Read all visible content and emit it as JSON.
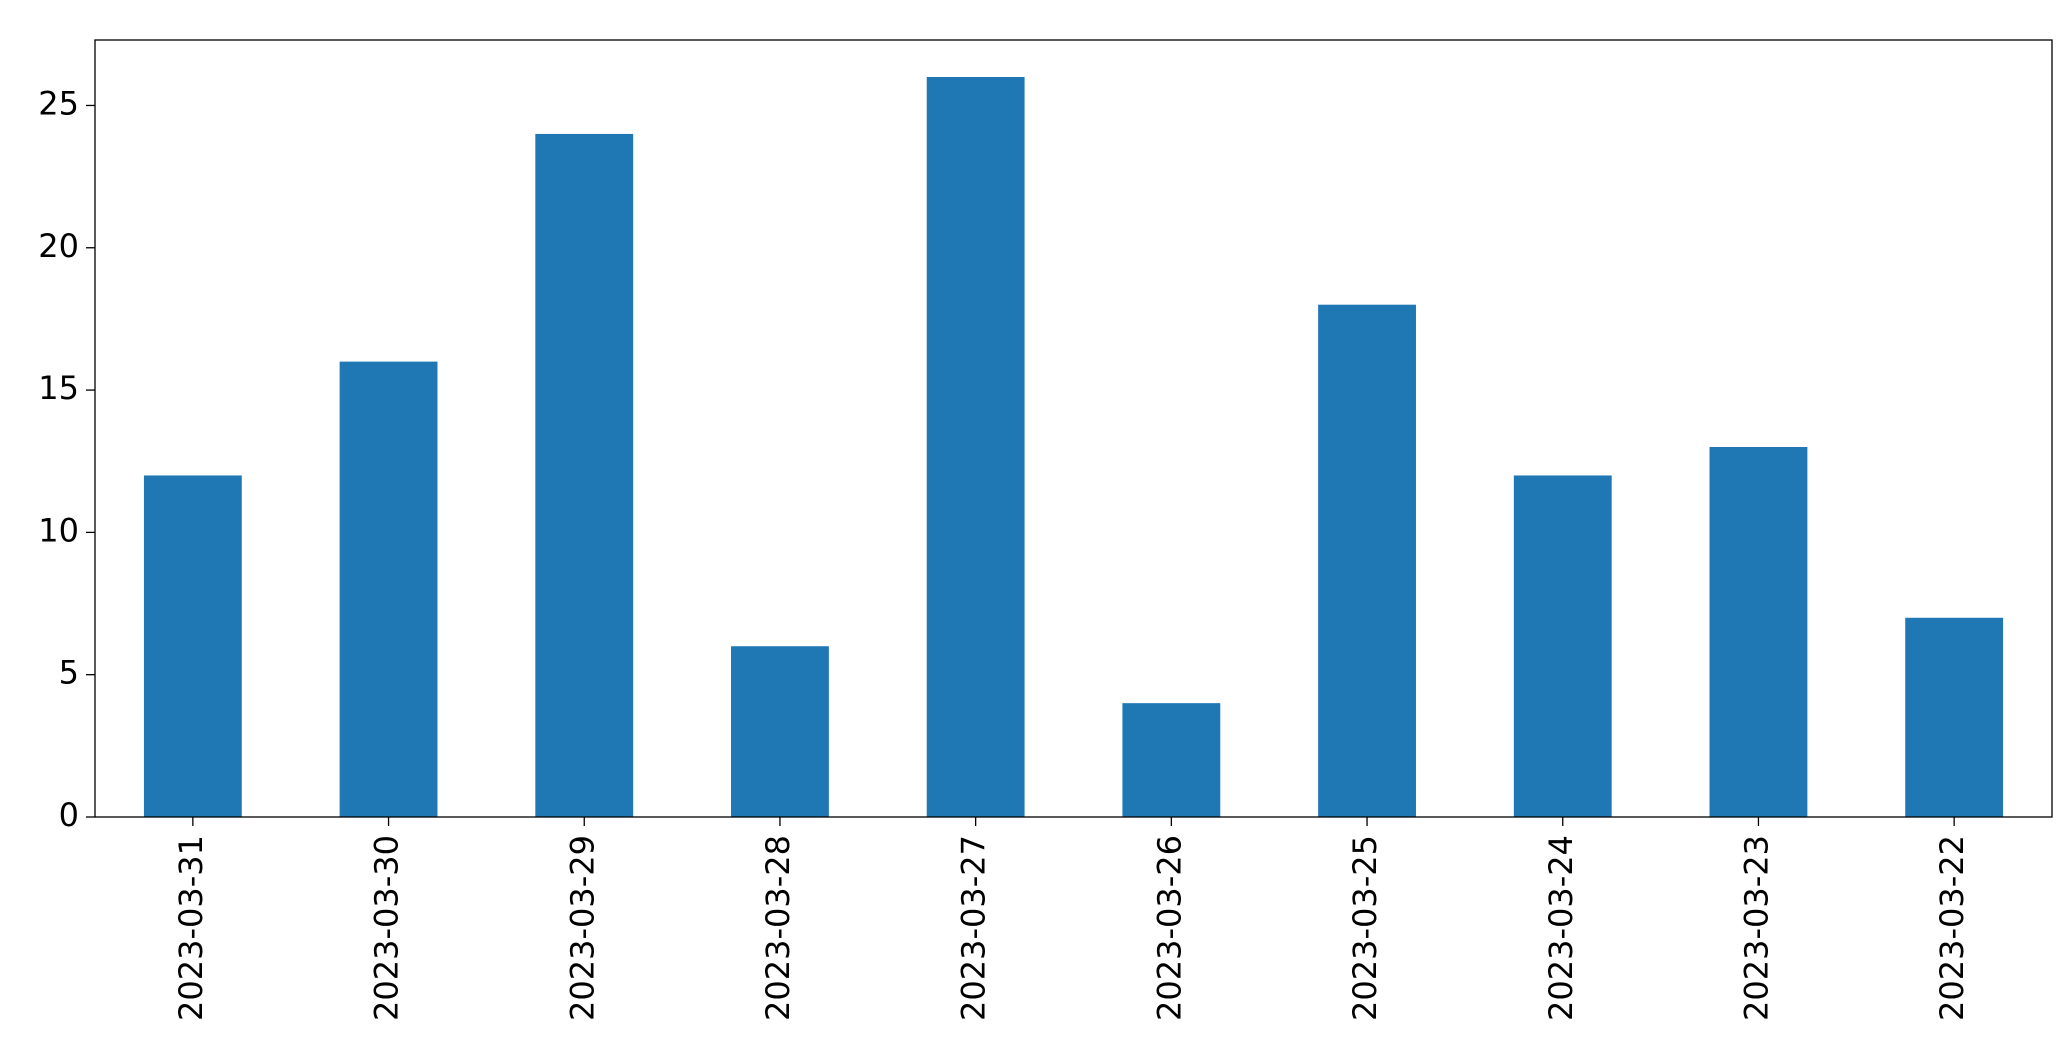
{
  "chart_data": {
    "type": "bar",
    "categories": [
      "2023-03-31",
      "2023-03-30",
      "2023-03-29",
      "2023-03-28",
      "2023-03-27",
      "2023-03-26",
      "2023-03-25",
      "2023-03-24",
      "2023-03-23",
      "2023-03-22"
    ],
    "values": [
      12,
      16,
      24,
      6,
      26,
      4,
      18,
      12,
      13,
      7
    ],
    "color": "#1f77b4",
    "ylim": [
      0,
      27.3
    ],
    "yticks": [
      0,
      5,
      10,
      15,
      20,
      25
    ],
    "grid": false
  }
}
